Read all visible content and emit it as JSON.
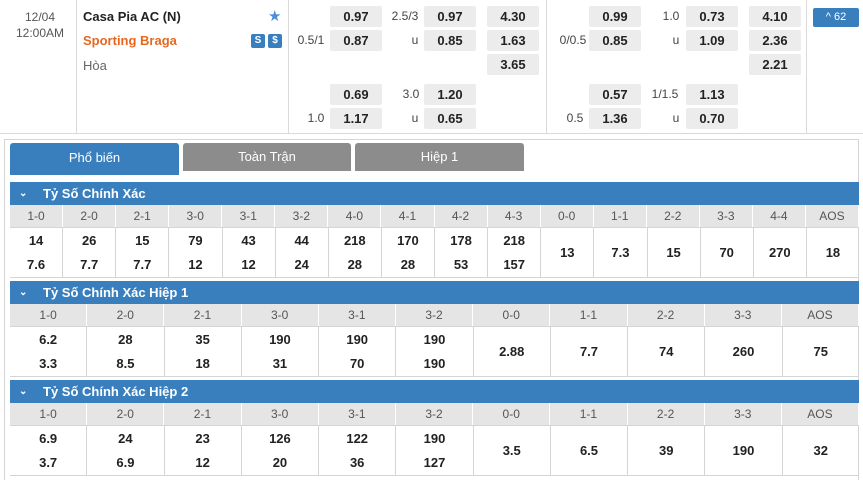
{
  "match": {
    "date": "12/04",
    "time": "12:00AM",
    "home": "Casa Pia AC (N)",
    "away": "Sporting Braga",
    "draw": "Hòa",
    "icon_s": "S",
    "icon_dollar": "$",
    "more_label": "^ 62",
    "ft": {
      "hdp1": {
        "line_away": "0.5/1",
        "home": "0.97",
        "away": "0.87"
      },
      "ou1": {
        "line": "2.5/3",
        "u": "u",
        "over": "0.97",
        "under": "0.85"
      },
      "x12": {
        "home": "4.30",
        "away": "1.63",
        "draw": "3.65"
      },
      "hdp2": {
        "line_away": "1.0",
        "home": "0.69",
        "away": "1.17"
      },
      "ou2": {
        "line": "3.0",
        "u": "u",
        "over": "1.20",
        "under": "0.65"
      }
    },
    "h1": {
      "hdp1": {
        "line_away": "0/0.5",
        "home": "0.99",
        "away": "0.85"
      },
      "ou1": {
        "line": "1.0",
        "u": "u",
        "over": "0.73",
        "under": "1.09"
      },
      "x12": {
        "home": "4.10",
        "away": "2.36",
        "draw": "2.21"
      },
      "hdp2": {
        "line_away": "0.5",
        "home": "0.57",
        "away": "1.36"
      },
      "ou2": {
        "line": "1/1.5",
        "u": "u",
        "over": "1.13",
        "under": "0.70"
      }
    }
  },
  "tabs": [
    "Phổ biến",
    "Toàn Trận",
    "Hiệp 1"
  ],
  "sections": [
    {
      "title": "Tỷ Số Chính Xác",
      "scores": [
        "1-0",
        "2-0",
        "2-1",
        "3-0",
        "3-1",
        "3-2",
        "4-0",
        "4-1",
        "4-2",
        "4-3",
        "0-0",
        "1-1",
        "2-2",
        "3-3",
        "4-4",
        "AOS"
      ],
      "odds": [
        [
          "14",
          "7.6"
        ],
        [
          "26",
          "7.7"
        ],
        [
          "15",
          "7.7"
        ],
        [
          "79",
          "12"
        ],
        [
          "43",
          "12"
        ],
        [
          "44",
          "24"
        ],
        [
          "218",
          "28"
        ],
        [
          "170",
          "28"
        ],
        [
          "178",
          "53"
        ],
        [
          "218",
          "157"
        ],
        [
          "13"
        ],
        [
          "7.3"
        ],
        [
          "15"
        ],
        [
          "70"
        ],
        [
          "270"
        ],
        [
          "18"
        ]
      ]
    },
    {
      "title": "Tỷ Số Chính Xác Hiệp 1",
      "scores": [
        "1-0",
        "2-0",
        "2-1",
        "3-0",
        "3-1",
        "3-2",
        "0-0",
        "1-1",
        "2-2",
        "3-3",
        "AOS"
      ],
      "odds": [
        [
          "6.2",
          "3.3"
        ],
        [
          "28",
          "8.5"
        ],
        [
          "35",
          "18"
        ],
        [
          "190",
          "31"
        ],
        [
          "190",
          "70"
        ],
        [
          "190",
          "190"
        ],
        [
          "2.88"
        ],
        [
          "7.7"
        ],
        [
          "74"
        ],
        [
          "260"
        ],
        [
          "75"
        ]
      ]
    },
    {
      "title": "Tỷ Số Chính Xác Hiệp 2",
      "scores": [
        "1-0",
        "2-0",
        "2-1",
        "3-0",
        "3-1",
        "3-2",
        "0-0",
        "1-1",
        "2-2",
        "3-3",
        "AOS"
      ],
      "odds": [
        [
          "6.9",
          "3.7"
        ],
        [
          "24",
          "6.9"
        ],
        [
          "23",
          "12"
        ],
        [
          "126",
          "20"
        ],
        [
          "122",
          "36"
        ],
        [
          "190",
          "127"
        ],
        [
          "3.5"
        ],
        [
          "6.5"
        ],
        [
          "39"
        ],
        [
          "190"
        ],
        [
          "32"
        ]
      ]
    }
  ]
}
